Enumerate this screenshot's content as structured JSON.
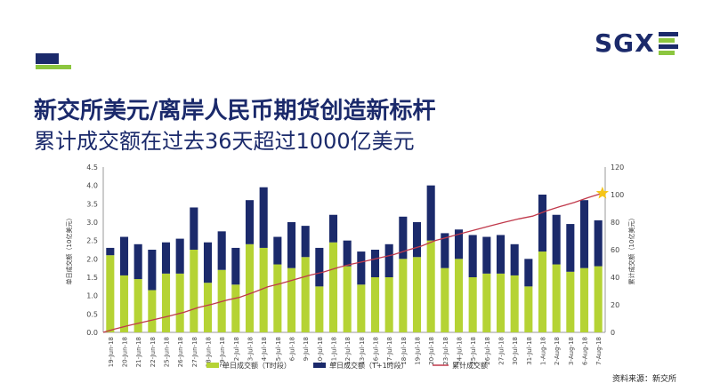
{
  "header": {
    "title": "新交所美元/离岸人民币期货创造新标杆",
    "subtitle": "累计成交额在过去36天超过1000亿美元",
    "logo_text": "SGX"
  },
  "source": "资料来源：新交所",
  "colors": {
    "green": "#b5d334",
    "navy": "#1b2a6b",
    "line": "#c0394b",
    "star": "#f5c518",
    "brand": "#1b2a6b",
    "accent": "#8cc63f"
  },
  "chart_data": {
    "type": "bar",
    "categories": [
      "19-Jun-18",
      "20-Jun-18",
      "21-Jun-18",
      "22-Jun-18",
      "25-Jun-18",
      "26-Jun-18",
      "27-Jun-18",
      "28-Jun-18",
      "29-Jun-18",
      "2-Jul-18",
      "3-Jul-18",
      "4-Jul-18",
      "5-Jul-18",
      "6-Jul-18",
      "9-Jul-18",
      "10-Jul-18",
      "11-Jul-18",
      "12-Jul-18",
      "13-Jul-18",
      "16-Jul-18",
      "17-Jul-18",
      "18-Jul-18",
      "19-Jul-18",
      "20-Jul-18",
      "23-Jul-18",
      "24-Jul-18",
      "25-Jul-18",
      "26-Jul-18",
      "27-Jul-18",
      "30-Jul-18",
      "31-Jul-18",
      "1-Aug-18",
      "2-Aug-18",
      "3-Aug-18",
      "6-Aug-18",
      "7-Aug-18"
    ],
    "series": [
      {
        "name": "单日成交额（T时段）",
        "type": "bar",
        "stack": true,
        "values": [
          2.1,
          1.55,
          1.45,
          1.15,
          1.6,
          1.6,
          2.25,
          1.35,
          1.7,
          1.3,
          2.4,
          2.3,
          1.85,
          1.75,
          2.05,
          1.25,
          2.45,
          1.8,
          1.3,
          1.5,
          1.5,
          2.0,
          2.05,
          2.5,
          1.75,
          2.0,
          1.5,
          1.6,
          1.6,
          1.55,
          1.25,
          2.2,
          1.85,
          1.65,
          1.75,
          1.8
        ]
      },
      {
        "name": "单日成交额（T+1时段）",
        "type": "bar",
        "stack": true,
        "values": [
          0.2,
          1.05,
          0.95,
          1.1,
          0.85,
          0.95,
          1.15,
          1.1,
          1.05,
          1.0,
          1.2,
          1.65,
          0.75,
          1.25,
          0.85,
          1.05,
          0.75,
          0.7,
          0.9,
          0.75,
          0.9,
          1.15,
          0.95,
          1.5,
          0.95,
          0.8,
          1.15,
          1.0,
          1.05,
          0.85,
          0.75,
          1.55,
          1.35,
          1.3,
          1.85,
          1.25
        ]
      },
      {
        "name": "累计成交额",
        "type": "line",
        "axis": "right",
        "values": [
          2.3,
          4.9,
          7.3,
          9.6,
          12.0,
          14.6,
          18.0,
          20.4,
          23.2,
          25.5,
          29.1,
          33.0,
          35.6,
          38.6,
          41.5,
          43.8,
          47.0,
          49.5,
          51.7,
          54.0,
          56.4,
          59.6,
          62.6,
          66.6,
          69.3,
          72.1,
          74.8,
          77.4,
          80.0,
          82.4,
          84.4,
          88.2,
          91.4,
          94.3,
          97.9,
          101.0
        ]
      }
    ],
    "ylabel": "单日成交额（10亿美元）",
    "y2label": "累计成交额（10亿美元）",
    "ylim": [
      0,
      4.5
    ],
    "y2lim": [
      0,
      120
    ],
    "yticks": [
      "0.0",
      "0.5",
      "1.0",
      "1.5",
      "2.0",
      "2.5",
      "3.0",
      "3.5",
      "4.0",
      "4.5"
    ],
    "y2ticks": [
      "0",
      "20",
      "40",
      "60",
      "80",
      "100",
      "120"
    ],
    "grid": false,
    "legend_position": "bottom"
  }
}
